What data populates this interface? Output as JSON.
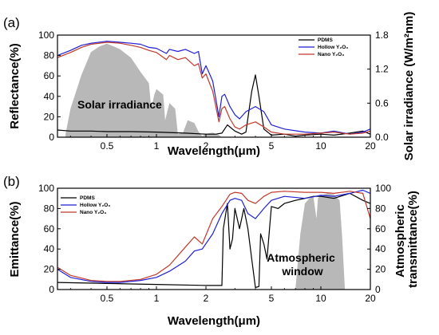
{
  "colors": {
    "pdms": "#000000",
    "hollow": "#1f1fd6",
    "nano": "#c0392b",
    "fill": "#b8b8b8"
  },
  "chart_data": [
    {
      "type": "line",
      "panel_label": "(a)",
      "xlabel": "Wavelength(μm)",
      "ylabel": "Reflectance(%)",
      "y2label": "Solar irradiance (W/m²nm)",
      "xscale": "log",
      "xlim": [
        0.25,
        20
      ],
      "ylim": [
        0,
        100
      ],
      "y2lim": [
        0,
        1.8
      ],
      "xticks": [
        0.5,
        1,
        2,
        5,
        10,
        20
      ],
      "yticks": [
        0,
        20,
        40,
        60,
        80,
        100
      ],
      "y2ticks": [
        0.0,
        0.6,
        1.2,
        1.8
      ],
      "legend_position": "top-right",
      "annotations": [
        {
          "text": "Solar irradiance",
          "x": 0.29,
          "y": 30
        }
      ],
      "series": [
        {
          "name": "PDMS",
          "key": "pdms",
          "x": [
            0.25,
            0.3,
            0.4,
            0.5,
            0.7,
            1.0,
            1.5,
            2.0,
            2.3,
            2.5,
            2.7,
            3.0,
            3.3,
            3.5,
            3.8,
            4.0,
            4.2,
            4.5,
            5.0,
            6.0,
            7.0,
            8.0,
            10.0,
            12.0,
            15.0,
            18.0,
            20.0
          ],
          "y": [
            7,
            6,
            6,
            5.5,
            5.5,
            5,
            4,
            3,
            3,
            4,
            12,
            6,
            3,
            5,
            45,
            61,
            40,
            8,
            2,
            3,
            1,
            2,
            3,
            2,
            4,
            6,
            3
          ]
        },
        {
          "name": "Hollow Y₂O₃",
          "key": "hollow",
          "x": [
            0.25,
            0.3,
            0.35,
            0.4,
            0.5,
            0.6,
            0.7,
            0.8,
            0.9,
            1.0,
            1.15,
            1.2,
            1.35,
            1.5,
            1.7,
            1.8,
            1.9,
            2.0,
            2.2,
            2.4,
            2.5,
            2.6,
            2.8,
            3.0,
            3.2,
            3.5,
            4.0,
            4.5,
            5.0,
            6.0,
            8.0,
            10.0,
            12.0,
            15.0,
            18.0,
            20.0
          ],
          "y": [
            80,
            85,
            90,
            92,
            94,
            93,
            92,
            91,
            88,
            87,
            82,
            86,
            84,
            86,
            82,
            84,
            62,
            70,
            55,
            20,
            40,
            42,
            30,
            22,
            18,
            25,
            30,
            25,
            12,
            8,
            5,
            4,
            6,
            3,
            5,
            8
          ]
        },
        {
          "name": "Nano Y₂O₃",
          "key": "nano",
          "x": [
            0.25,
            0.3,
            0.35,
            0.4,
            0.5,
            0.6,
            0.7,
            0.8,
            0.9,
            1.0,
            1.15,
            1.2,
            1.35,
            1.5,
            1.7,
            1.8,
            1.9,
            2.0,
            2.2,
            2.4,
            2.5,
            2.6,
            2.8,
            3.0,
            3.2,
            3.5,
            4.0,
            4.5,
            5.0,
            6.0,
            8.0,
            10.0,
            12.0,
            15.0,
            18.0,
            20.0
          ],
          "y": [
            78,
            83,
            88,
            91,
            93,
            92,
            90,
            88,
            85,
            83,
            76,
            80,
            76,
            78,
            70,
            72,
            58,
            62,
            45,
            15,
            28,
            30,
            18,
            10,
            8,
            12,
            15,
            10,
            5,
            3,
            3,
            4,
            5,
            3,
            4,
            6
          ]
        }
      ],
      "fill_series": {
        "axis": "y2",
        "x": [
          0.28,
          0.3,
          0.35,
          0.4,
          0.45,
          0.5,
          0.55,
          0.6,
          0.7,
          0.8,
          0.9,
          0.93,
          0.97,
          1.0,
          1.1,
          1.13,
          1.2,
          1.3,
          1.35,
          1.45,
          1.55,
          1.7,
          1.8,
          1.9,
          2.0,
          2.2,
          2.4,
          2.5
        ],
        "y": [
          0.05,
          0.5,
          1.1,
          1.5,
          1.6,
          1.65,
          1.6,
          1.55,
          1.4,
          1.15,
          0.95,
          0.5,
          0.75,
          0.85,
          0.75,
          0.3,
          0.6,
          0.5,
          0.05,
          0.08,
          0.3,
          0.25,
          0.1,
          0.02,
          0.06,
          0.08,
          0.04,
          0.0
        ]
      }
    },
    {
      "type": "line",
      "panel_label": "(b)",
      "xlabel": "Wavelength(μm)",
      "ylabel": "Emittance(%)",
      "y2label": "Atmospheric transmittance(%)",
      "xscale": "log",
      "xlim": [
        0.25,
        20
      ],
      "ylim": [
        0,
        100
      ],
      "y2lim": [
        0,
        100
      ],
      "xticks": [
        0.5,
        1,
        2,
        5,
        10,
        20
      ],
      "yticks": [
        0,
        20,
        40,
        60,
        80,
        100
      ],
      "y2ticks": [
        0,
        20,
        40,
        60,
        80,
        100
      ],
      "legend_position": "top-left",
      "annotations": [
        {
          "text": "Atmospheric window",
          "x": 9.2,
          "y": 25
        }
      ],
      "series": [
        {
          "name": "PDMS",
          "key": "pdms",
          "x": [
            0.25,
            0.5,
            1.0,
            2.0,
            2.5,
            2.55,
            2.7,
            2.8,
            2.9,
            3.0,
            3.1,
            3.2,
            3.4,
            3.6,
            3.8,
            4.0,
            4.2,
            4.3,
            4.5,
            4.7,
            5.0,
            5.5,
            6.0,
            7.0,
            8.0,
            9.0,
            10.0,
            12.0,
            15.0,
            18.0,
            20.0
          ],
          "y": [
            7,
            6,
            5,
            4,
            4,
            60,
            85,
            40,
            50,
            80,
            70,
            60,
            80,
            60,
            30,
            2,
            3,
            55,
            45,
            30,
            82,
            80,
            85,
            88,
            90,
            92,
            92,
            90,
            95,
            88,
            85
          ]
        },
        {
          "name": "Hollow Y₂O₃",
          "key": "hollow",
          "x": [
            0.25,
            0.3,
            0.4,
            0.5,
            0.6,
            0.8,
            1.0,
            1.2,
            1.5,
            1.7,
            1.9,
            2.2,
            2.5,
            2.8,
            3.0,
            3.3,
            3.6,
            4.0,
            4.5,
            5.0,
            6.0,
            8.0,
            10.0,
            12.0,
            15.0,
            18.0,
            20.0
          ],
          "y": [
            20,
            12,
            8,
            7,
            7,
            9,
            12,
            18,
            28,
            38,
            40,
            55,
            75,
            88,
            90,
            88,
            75,
            70,
            80,
            88,
            92,
            90,
            93,
            92,
            95,
            98,
            95
          ]
        },
        {
          "name": "Nano Y₂O₃",
          "key": "nano",
          "x": [
            0.25,
            0.3,
            0.4,
            0.5,
            0.6,
            0.8,
            1.0,
            1.2,
            1.5,
            1.7,
            1.9,
            2.2,
            2.5,
            2.8,
            3.0,
            3.3,
            3.6,
            4.0,
            4.5,
            5.0,
            6.0,
            8.0,
            10.0,
            12.0,
            15.0,
            18.0,
            20.0
          ],
          "y": [
            22,
            14,
            9,
            8,
            8,
            10,
            15,
            24,
            42,
            52,
            45,
            70,
            82,
            94,
            96,
            95,
            88,
            85,
            92,
            96,
            97,
            96,
            96,
            95,
            97,
            95,
            70
          ]
        }
      ],
      "fill_series": {
        "axis": "y2",
        "x": [
          7.0,
          7.5,
          8.0,
          8.5,
          9.0,
          9.4,
          9.6,
          10.0,
          11.0,
          12.0,
          13.0,
          13.5,
          14.0
        ],
        "y": [
          0,
          55,
          85,
          90,
          92,
          70,
          90,
          93,
          95,
          94,
          88,
          50,
          0
        ]
      }
    }
  ]
}
